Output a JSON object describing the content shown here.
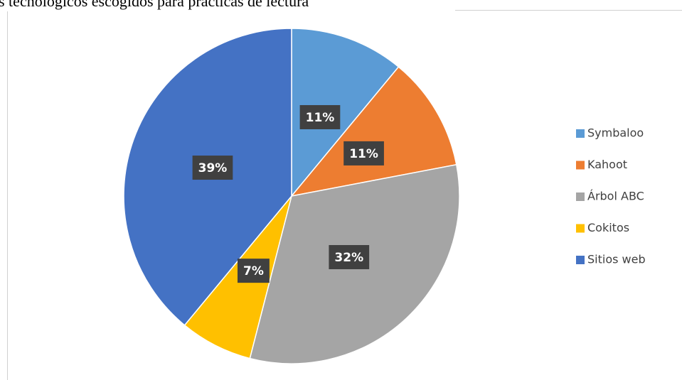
{
  "chart_data": {
    "type": "pie",
    "title": "s tecnológicos escogidos para prácticas de lectura",
    "categories": [
      "Symbaloo",
      "Kahoot",
      "Árbol ABC",
      "Cokitos",
      "Sitios web"
    ],
    "values": [
      11,
      11,
      32,
      7,
      39
    ],
    "value_labels": [
      "11%",
      "11%",
      "32%",
      "7%",
      "39%"
    ],
    "colors": [
      "#5b9bd5",
      "#ed7d31",
      "#a5a5a5",
      "#ffc000",
      "#4472c4"
    ],
    "legend": "right"
  }
}
